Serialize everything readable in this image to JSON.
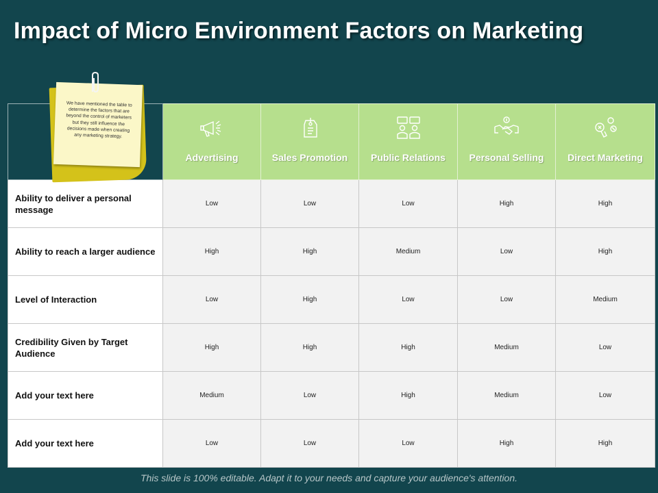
{
  "title": "Impact of Micro Environment Factors on Marketing",
  "note": "We have mentioned the table to determine the factors  that are beyond the control of marketers but they still influence the decisions made when creating any marketing strategy.",
  "columns": [
    {
      "label": "Advertising",
      "icon": "megaphone-icon"
    },
    {
      "label": "Sales Promotion",
      "icon": "price-tag-icon"
    },
    {
      "label": "Public Relations",
      "icon": "people-chat-icon"
    },
    {
      "label": "Personal Selling",
      "icon": "handshake-icon"
    },
    {
      "label": "Direct Marketing",
      "icon": "marketing-loudspeaker-icon"
    }
  ],
  "rows": [
    {
      "label": "Ability to deliver a personal message",
      "values": [
        "Low",
        "Low",
        "Low",
        "High",
        "High"
      ]
    },
    {
      "label": "Ability to reach a larger audience",
      "values": [
        "High",
        "High",
        "Medium",
        "Low",
        "High"
      ]
    },
    {
      "label": "Level of Interaction",
      "values": [
        "Low",
        "High",
        "Low",
        "Low",
        "Medium"
      ]
    },
    {
      "label": "Credibility Given by Target Audience",
      "values": [
        "High",
        "High",
        "High",
        "Medium",
        "Low"
      ]
    },
    {
      "label": "Add your text here",
      "values": [
        "Medium",
        "Low",
        "High",
        "Medium",
        "Low"
      ]
    },
    {
      "label": "Add your text here",
      "values": [
        "Low",
        "Low",
        "Low",
        "High",
        "High"
      ]
    }
  ],
  "footer": "This slide is 100% editable. Adapt it to your needs and capture your audience's attention.",
  "colors": {
    "background": "#12454d",
    "header": "#b6df8d",
    "cell": "#f2f2f2",
    "sticky": "#d4c21a"
  }
}
